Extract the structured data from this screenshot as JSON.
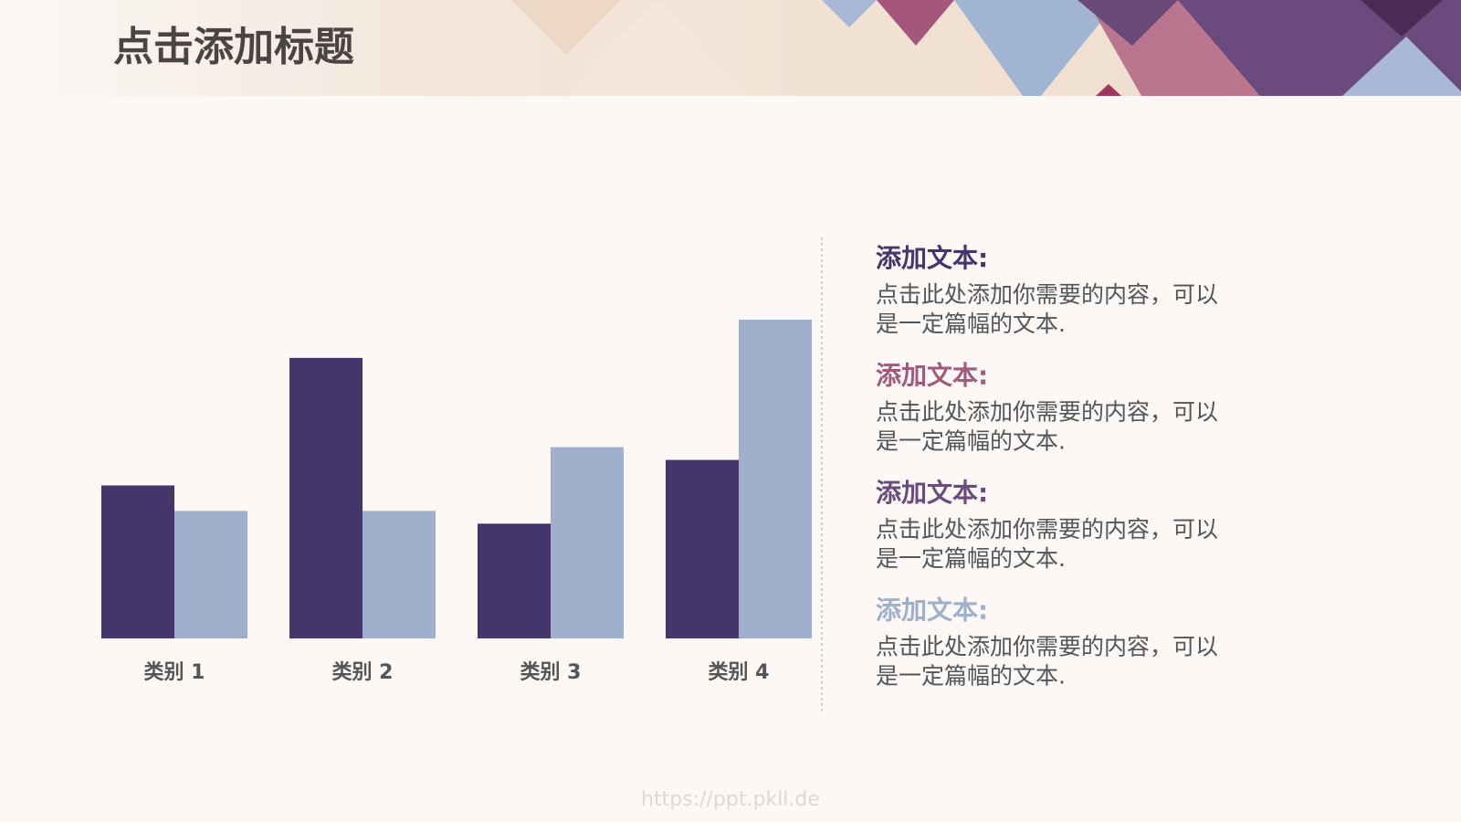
{
  "title": "点击添加标题",
  "chart_data": {
    "type": "bar",
    "categories": [
      "类别 1",
      "类别 2",
      "类别 3",
      "类别 4"
    ],
    "series": [
      {
        "color": "#44366a",
        "values": [
          2.4,
          4.4,
          1.8,
          2.8
        ]
      },
      {
        "color": "#9fb0cc",
        "values": [
          2,
          2,
          3,
          5
        ]
      }
    ],
    "ylim": [
      0,
      5
    ]
  },
  "notes": [
    {
      "heading": "添加文本:",
      "color": "#44366a",
      "lines": [
        "点击此处添加你需要的内容，可以",
        "是一定篇幅的文本."
      ]
    },
    {
      "heading": "添加文本:",
      "color": "#a05a7a",
      "lines": [
        "点击此处添加你需要的内容，可以",
        "是一定篇幅的文本."
      ]
    },
    {
      "heading": "添加文本:",
      "color": "#6b4a7e",
      "lines": [
        "点击此处添加你需要的内容，可以",
        "是一定篇幅的文本."
      ]
    },
    {
      "heading": "添加文本:",
      "color": "#9fb0cc",
      "lines": [
        "点击此处添加你需要的内容，可以",
        "是一定篇幅的文本."
      ]
    }
  ],
  "watermark": "https://ppt.pkll.de"
}
